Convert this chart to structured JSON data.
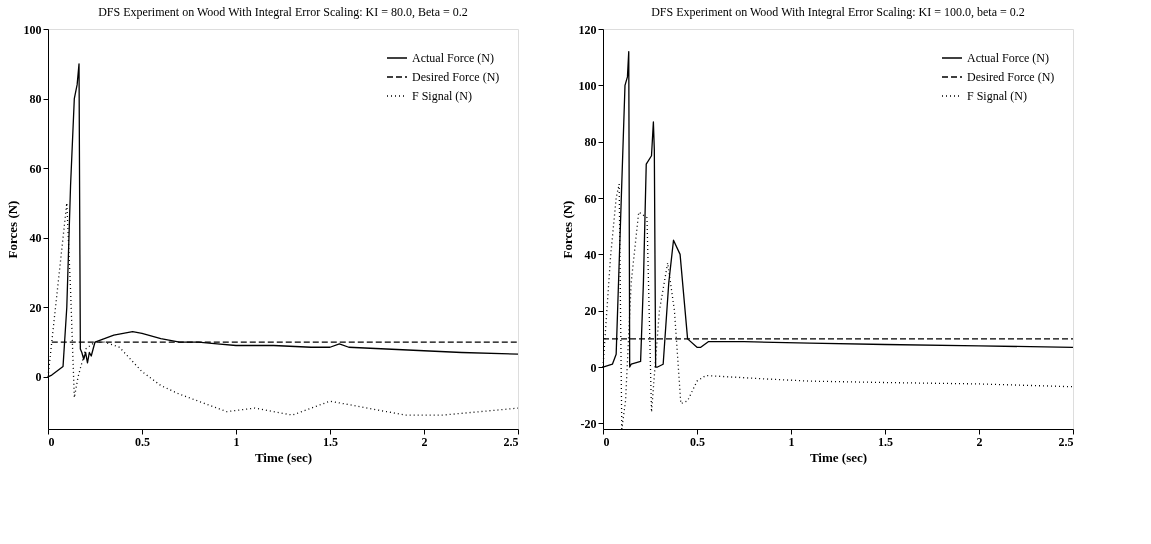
{
  "chart_data": [
    {
      "type": "line",
      "title": "DFS Experiment on Wood With Integral Error Scaling: KI = 80.0, Beta = 0.2",
      "xlabel": "Time (sec)",
      "ylabel": "Forces (N)",
      "xlim": [
        0,
        2.5
      ],
      "ylim": [
        -15,
        100
      ],
      "xticks": [
        0,
        0.5,
        1,
        1.5,
        2,
        2.5
      ],
      "yticks": [
        0,
        20,
        40,
        60,
        80,
        100
      ],
      "grid": false,
      "legend": "top right",
      "marker": "none",
      "series": [
        {
          "name": "Actual Force (N)",
          "color": "#000000",
          "line_style": "solid",
          "x": [
            0,
            0.02,
            0.08,
            0.1,
            0.12,
            0.14,
            0.155,
            0.165,
            0.172,
            0.18,
            0.19,
            0.2,
            0.21,
            0.22,
            0.23,
            0.25,
            0.3,
            0.35,
            0.4,
            0.45,
            0.5,
            0.6,
            0.7,
            0.8,
            0.9,
            1.0,
            1.2,
            1.4,
            1.5,
            1.55,
            1.6,
            1.8,
            2.0,
            2.2,
            2.5
          ],
          "values": [
            0,
            0.5,
            3,
            20,
            55,
            80,
            84,
            90,
            8,
            7,
            5,
            7,
            4,
            7,
            6,
            10,
            11,
            12,
            12.5,
            13,
            12.5,
            11,
            10,
            10,
            9.5,
            9,
            9,
            8.5,
            8.5,
            9.5,
            8.5,
            8,
            7.5,
            7,
            6.5
          ]
        },
        {
          "name": "Desired Force (N)",
          "color": "#000000",
          "line_style": "dashed",
          "x": [
            0.02,
            2.5
          ],
          "values": [
            10,
            10
          ]
        },
        {
          "name": "F Signal (N)",
          "color": "#000000",
          "line_style": "dotted",
          "x": [
            0,
            0.02,
            0.06,
            0.1,
            0.12,
            0.14,
            0.16,
            0.2,
            0.25,
            0.3,
            0.38,
            0.5,
            0.6,
            0.7,
            0.8,
            0.95,
            1.1,
            1.3,
            1.4,
            1.5,
            1.6,
            1.7,
            1.9,
            2.1,
            2.3,
            2.5
          ],
          "values": [
            0,
            10,
            30,
            50,
            25,
            -6,
            0,
            8,
            10,
            10,
            8.5,
            1.5,
            -2.5,
            -5,
            -7,
            -10,
            -9,
            -11,
            -9,
            -7,
            -8,
            -9,
            -11,
            -11,
            -10,
            -9
          ]
        }
      ]
    },
    {
      "type": "line",
      "title": "DFS Experiment on Wood With Integral Error Scaling: KI = 100.0, beta = 0.2",
      "xlabel": "Time (sec)",
      "ylabel": "Forces (N)",
      "xlim": [
        0,
        2.5
      ],
      "ylim": [
        -22,
        120
      ],
      "xticks": [
        0,
        0.5,
        1,
        1.5,
        2,
        2.5
      ],
      "yticks": [
        -20,
        0,
        20,
        40,
        60,
        80,
        100,
        120
      ],
      "grid": false,
      "legend": "top right",
      "marker": "none",
      "series": [
        {
          "name": "Actual Force (N)",
          "color": "#000000",
          "line_style": "solid",
          "x": [
            0,
            0.05,
            0.07,
            0.09,
            0.117,
            0.13,
            0.137,
            0.142,
            0.15,
            0.2,
            0.215,
            0.23,
            0.258,
            0.268,
            0.273,
            0.28,
            0.29,
            0.32,
            0.35,
            0.375,
            0.41,
            0.45,
            0.5,
            0.52,
            0.56,
            0.75,
            1.1,
            1.5,
            2.0,
            2.5
          ],
          "values": [
            0,
            1,
            4.5,
            45,
            100,
            103,
            112,
            0,
            1,
            2,
            30,
            72,
            75,
            87,
            77,
            0,
            0,
            1,
            30,
            45,
            40,
            10,
            7,
            7,
            9,
            9,
            8.5,
            8,
            7.5,
            7
          ]
        },
        {
          "name": "Desired Force (N)",
          "color": "#000000",
          "line_style": "dashed",
          "x": [
            0,
            2.5
          ],
          "values": [
            10,
            10
          ]
        },
        {
          "name": "F Signal (N)",
          "color": "#000000",
          "line_style": "dotted",
          "x": [
            0,
            0.04,
            0.07,
            0.086,
            0.1,
            0.12,
            0.15,
            0.19,
            0.234,
            0.258,
            0.3,
            0.344,
            0.38,
            0.414,
            0.45,
            0.5,
            0.547,
            0.8,
            1.1,
            1.5,
            2.0,
            2.5
          ],
          "values": [
            0,
            39,
            60,
            65,
            -22,
            -12,
            30,
            55,
            53,
            -16,
            20,
            37,
            20,
            -13,
            -12,
            -5,
            -3,
            -4,
            -5,
            -5.5,
            -6,
            -7
          ]
        }
      ]
    }
  ]
}
